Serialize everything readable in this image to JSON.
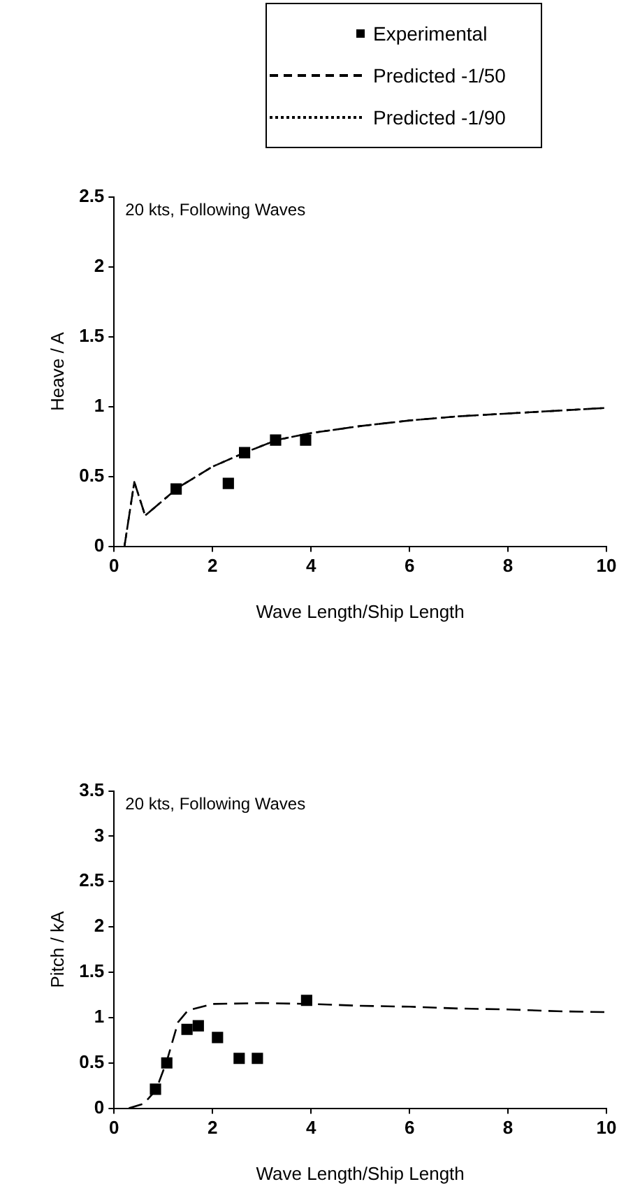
{
  "chart_data": [
    {
      "type": "scatter",
      "xlabel": "Wave Length/Ship Length",
      "ylabel": "Heave / A",
      "annotations": [
        "20 kts, Following Waves"
      ],
      "xlim": [
        0,
        10
      ],
      "xticks": [
        0,
        2,
        4,
        6,
        8,
        10
      ],
      "ylim": [
        0,
        2.5
      ],
      "yticks": [
        0,
        0.5,
        1,
        1.5,
        2,
        2.5
      ],
      "grid": false,
      "legend": "top",
      "series": [
        {
          "name": "Experimental",
          "marker": "square",
          "color": "#000000",
          "x": [
            1.26,
            2.32,
            2.65,
            3.28,
            3.89
          ],
          "values": [
            0.41,
            0.45,
            0.67,
            0.76,
            0.76
          ]
        },
        {
          "name": "Predicted -1/50",
          "type": "line",
          "marker": "none",
          "line_style": "dashed",
          "color": "#000000",
          "x": [
            0.21,
            0.41,
            0.63,
            1.3,
            2,
            2.65,
            3.3,
            4,
            5,
            6,
            7,
            8,
            9,
            10
          ],
          "values": [
            0,
            0.46,
            0.22,
            0.42,
            0.57,
            0.67,
            0.76,
            0.81,
            0.86,
            0.9,
            0.93,
            0.95,
            0.97,
            0.99
          ]
        },
        {
          "name": "Predicted -1/90",
          "type": "line",
          "marker": "none",
          "line_style": "dotted",
          "color": "#000000",
          "x": [
            0.21,
            0.41,
            0.63,
            1.3,
            2,
            2.65,
            3.3,
            4,
            5,
            6,
            7,
            8,
            9,
            10
          ],
          "values": [
            0,
            0.46,
            0.22,
            0.42,
            0.57,
            0.67,
            0.76,
            0.81,
            0.86,
            0.9,
            0.93,
            0.95,
            0.97,
            0.99
          ]
        }
      ]
    },
    {
      "type": "scatter",
      "xlabel": "Wave Length/Ship Length",
      "ylabel": "Pitch / kA",
      "annotations": [
        "20 kts, Following Waves"
      ],
      "xlim": [
        0,
        10
      ],
      "xticks": [
        0,
        2,
        4,
        6,
        8,
        10
      ],
      "ylim": [
        0,
        3.5
      ],
      "yticks": [
        0,
        0.5,
        1,
        1.5,
        2,
        2.5,
        3,
        3.5
      ],
      "grid": false,
      "series": [
        {
          "marker": "square",
          "color": "#000000",
          "x": [
            0.84,
            1.07,
            1.48,
            1.71,
            2.1,
            2.54,
            2.91,
            3.91
          ],
          "values": [
            0.21,
            0.5,
            0.87,
            0.91,
            0.78,
            0.55,
            0.55,
            1.19
          ]
        },
        {
          "type": "line",
          "marker": "none",
          "line_style": "dashed",
          "color": "#000000",
          "x": [
            0.3,
            0.6,
            0.85,
            1.07,
            1.3,
            1.5,
            2,
            3,
            4,
            5,
            6,
            7,
            8,
            9,
            10
          ],
          "values": [
            0,
            0.05,
            0.2,
            0.52,
            0.95,
            1.08,
            1.15,
            1.16,
            1.15,
            1.13,
            1.12,
            1.1,
            1.09,
            1.07,
            1.06
          ]
        }
      ]
    }
  ]
}
